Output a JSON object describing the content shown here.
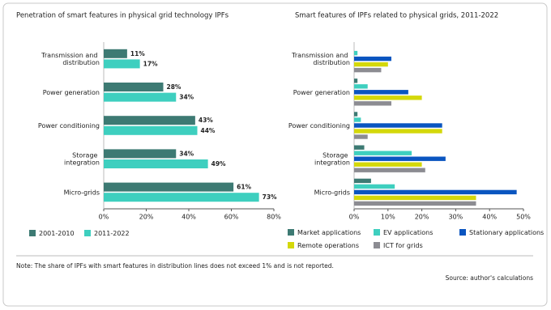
{
  "chart_data": [
    {
      "type": "hbar",
      "title": "Penetration of smart features in physical grid technology IPFs",
      "categories": [
        "Transmission and distribution",
        "Power generation",
        "Power conditioning",
        "Storage integration",
        "Micro-grids"
      ],
      "series": [
        {
          "name": "2001-2010",
          "color": "#3d7a73",
          "values": [
            11,
            28,
            43,
            34,
            61
          ],
          "value_labels": [
            "11%",
            "28%",
            "43%",
            "34%",
            "61%"
          ]
        },
        {
          "name": "2011-2022",
          "color": "#3ecfbf",
          "values": [
            17,
            34,
            44,
            49,
            73
          ],
          "value_labels": [
            "17%",
            "34%",
            "44%",
            "49%",
            "73%"
          ]
        }
      ],
      "xlim": [
        0,
        80
      ],
      "xticks": [
        {
          "value": 0,
          "label": "0%"
        },
        {
          "value": 20,
          "label": "20%"
        },
        {
          "value": 40,
          "label": "40%"
        },
        {
          "value": 60,
          "label": "60%"
        },
        {
          "value": 80,
          "label": "80%"
        }
      ],
      "legend": "bottom-left"
    },
    {
      "type": "hbar",
      "title": "Smart features of IPFs related to physical grids, 2011-2022",
      "categories": [
        "Transmission and distribution",
        "Power generation",
        "Power conditioning",
        "Storage integration",
        "Micro-grids"
      ],
      "series": [
        {
          "name": "Market applications",
          "color": "#3d7a73",
          "values": [
            0,
            1,
            1,
            3,
            5
          ]
        },
        {
          "name": "EV applications",
          "color": "#3ecfbf",
          "values": [
            1,
            4,
            2,
            17,
            12
          ]
        },
        {
          "name": "Stationary applications",
          "color": "#0a55c0",
          "values": [
            11,
            16,
            26,
            27,
            48
          ]
        },
        {
          "name": "Remote operations",
          "color": "#d4d80a",
          "values": [
            10,
            20,
            26,
            20,
            36
          ]
        },
        {
          "name": "ICT for grids",
          "color": "#8c8c92",
          "values": [
            8,
            11,
            4,
            21,
            36
          ]
        }
      ],
      "xlim": [
        0,
        50
      ],
      "xticks": [
        {
          "value": 0,
          "label": "0%"
        },
        {
          "value": 10,
          "label": "10%"
        },
        {
          "value": 20,
          "label": "20%"
        },
        {
          "value": 30,
          "label": "30%"
        },
        {
          "value": 40,
          "label": "40%"
        },
        {
          "value": 50,
          "label": "50%"
        }
      ],
      "legend": "bottom-left"
    }
  ],
  "note": "Note: The share of IPFs with smart features in distribution lines does not exceed 1% and is not reported.",
  "source": "Source: author's calculations"
}
